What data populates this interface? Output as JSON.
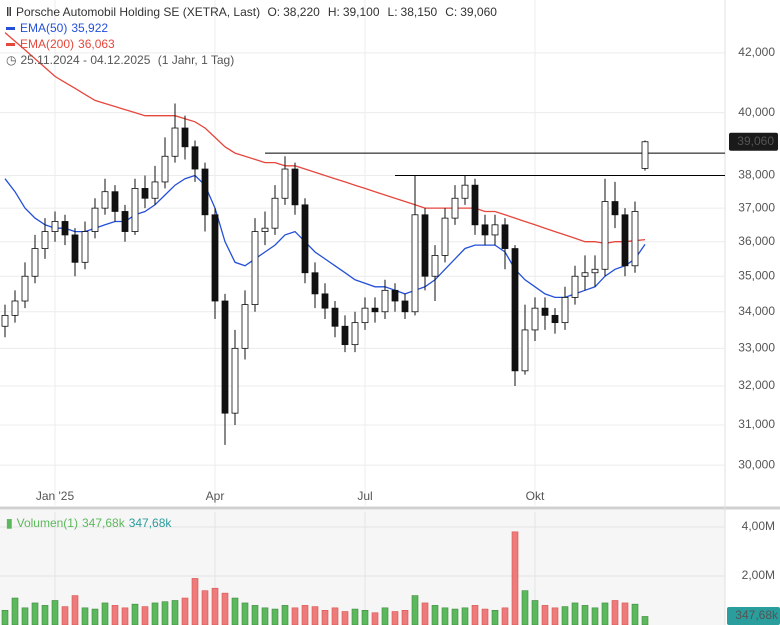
{
  "chart_data": {
    "type": "candlestick",
    "title": "Porsche Automobil Holding SE (XETRA, Last)",
    "quote": [
      {
        "key": "O:",
        "label": "38,220"
      },
      {
        "key": "H:",
        "label": "39,100"
      },
      {
        "key": "L:",
        "label": "38,150"
      },
      {
        "key": "C:",
        "label": "39,060"
      }
    ],
    "period": "25.11.2024 - 04.12.2025",
    "period_note": "(1 Jahr, 1 Tag)",
    "categories": [
      null,
      null,
      null,
      null,
      null,
      "Jan '25",
      null,
      null,
      null,
      null,
      null,
      null,
      null,
      null,
      null,
      null,
      null,
      null,
      null,
      null,
      null,
      "Apr",
      null,
      null,
      null,
      null,
      null,
      null,
      null,
      null,
      null,
      null,
      null,
      null,
      null,
      null,
      "Jul",
      null,
      null,
      null,
      null,
      null,
      null,
      null,
      null,
      null,
      null,
      null,
      null,
      null,
      null,
      null,
      null,
      "Okt",
      null,
      null,
      null,
      null,
      null,
      null,
      null,
      null,
      null,
      null,
      null
    ],
    "open": [
      33.6,
      33.9,
      34.3,
      35.0,
      35.8,
      36.3,
      36.6,
      36.2,
      35.4,
      36.3,
      37.0,
      37.5,
      36.9,
      36.3,
      37.6,
      37.3,
      37.8,
      38.6,
      39.5,
      38.9,
      38.2,
      36.8,
      34.3,
      31.3,
      33.0,
      34.2,
      36.3,
      36.4,
      37.3,
      38.2,
      37.1,
      35.1,
      34.5,
      34.1,
      33.6,
      33.1,
      33.7,
      34.1,
      34.0,
      34.6,
      34.3,
      34.0,
      36.8,
      35.0,
      35.6,
      36.7,
      37.3,
      37.7,
      36.5,
      36.2,
      36.5,
      35.8,
      32.4,
      33.5,
      34.1,
      33.9,
      33.7,
      34.4,
      35.0,
      35.1,
      35.2,
      37.2,
      36.8,
      35.3,
      38.22
    ],
    "high": [
      34.2,
      34.6,
      35.4,
      36.2,
      36.7,
      36.9,
      36.8,
      36.4,
      36.6,
      37.3,
      37.9,
      37.7,
      37.1,
      37.9,
      38.0,
      38.3,
      39.2,
      40.3,
      39.9,
      39.1,
      38.4,
      37.0,
      34.5,
      33.5,
      34.6,
      36.7,
      36.9,
      37.7,
      38.6,
      38.4,
      37.3,
      35.4,
      34.8,
      34.3,
      33.9,
      34.0,
      34.4,
      34.4,
      34.9,
      34.8,
      34.5,
      38.0,
      37.0,
      35.9,
      37.0,
      37.7,
      38.0,
      37.9,
      36.8,
      36.8,
      36.7,
      35.9,
      34.2,
      34.4,
      34.4,
      34.1,
      34.7,
      35.3,
      35.6,
      35.6,
      37.9,
      37.8,
      37.0,
      37.2,
      39.1
    ],
    "low": [
      33.3,
      33.7,
      34.1,
      34.8,
      35.5,
      36.0,
      35.9,
      35.0,
      35.2,
      36.1,
      36.8,
      36.6,
      36.0,
      36.2,
      37.0,
      37.1,
      37.6,
      38.4,
      38.5,
      37.8,
      36.3,
      33.8,
      30.5,
      31.0,
      32.7,
      34.0,
      35.9,
      36.2,
      37.1,
      36.8,
      34.8,
      34.1,
      33.8,
      33.3,
      32.9,
      32.9,
      33.5,
      33.7,
      33.8,
      34.0,
      33.8,
      33.9,
      34.6,
      34.3,
      35.4,
      36.5,
      37.1,
      36.2,
      35.9,
      35.9,
      35.2,
      32.0,
      32.3,
      33.2,
      33.5,
      33.4,
      33.5,
      34.2,
      34.6,
      34.7,
      35.0,
      36.4,
      35.0,
      35.1,
      38.15
    ],
    "close": [
      33.9,
      34.3,
      35.0,
      35.8,
      36.3,
      36.6,
      36.2,
      35.4,
      36.3,
      37.0,
      37.5,
      36.9,
      36.3,
      37.6,
      37.3,
      37.8,
      38.6,
      39.5,
      38.9,
      38.2,
      36.8,
      34.3,
      31.3,
      33.0,
      34.2,
      36.3,
      36.4,
      37.3,
      38.2,
      37.1,
      35.1,
      34.5,
      34.1,
      33.6,
      33.1,
      33.7,
      34.1,
      34.0,
      34.6,
      34.3,
      34.0,
      36.8,
      35.0,
      35.6,
      36.7,
      37.3,
      37.7,
      36.5,
      36.2,
      36.5,
      35.8,
      32.4,
      33.5,
      34.1,
      33.9,
      33.7,
      34.4,
      35.0,
      35.1,
      35.2,
      37.2,
      36.8,
      35.3,
      36.9,
      39.06
    ],
    "candle_color": "#111111",
    "last_price_label": "39,060",
    "ema": [
      {
        "name": "EMA(50)",
        "color": "#2450d8",
        "last_label": "35,922",
        "values": [
          37.9,
          37.5,
          37.0,
          36.7,
          36.5,
          36.4,
          36.4,
          36.3,
          36.3,
          36.4,
          36.5,
          36.6,
          36.6,
          36.8,
          36.9,
          37.1,
          37.4,
          37.7,
          37.9,
          38.0,
          37.7,
          37.0,
          36.0,
          35.4,
          35.3,
          35.5,
          35.7,
          35.9,
          36.2,
          36.3,
          36.0,
          35.7,
          35.5,
          35.3,
          35.1,
          34.9,
          34.8,
          34.7,
          34.7,
          34.6,
          34.5,
          34.6,
          34.7,
          34.9,
          35.2,
          35.5,
          35.8,
          35.9,
          35.9,
          35.9,
          35.7,
          35.2,
          34.9,
          34.7,
          34.5,
          34.4,
          34.4,
          34.5,
          34.6,
          34.7,
          35.0,
          35.2,
          35.3,
          35.5,
          35.922
        ]
      },
      {
        "name": "EMA(200)",
        "color": "#e5473d",
        "last_label": "36,063",
        "values": [
          42.7,
          42.4,
          42.1,
          41.8,
          41.5,
          41.2,
          41.0,
          40.8,
          40.6,
          40.4,
          40.3,
          40.2,
          40.1,
          40.0,
          39.9,
          39.9,
          39.9,
          39.9,
          39.8,
          39.7,
          39.5,
          39.2,
          38.9,
          38.7,
          38.6,
          38.5,
          38.4,
          38.4,
          38.3,
          38.3,
          38.2,
          38.1,
          38.0,
          37.9,
          37.8,
          37.7,
          37.6,
          37.5,
          37.4,
          37.3,
          37.2,
          37.1,
          37.0,
          37.0,
          37.0,
          37.0,
          37.0,
          37.0,
          36.9,
          36.9,
          36.8,
          36.7,
          36.6,
          36.5,
          36.4,
          36.3,
          36.2,
          36.1,
          36.0,
          36.0,
          35.95,
          36.0,
          36.0,
          36.03,
          36.063
        ]
      }
    ],
    "levels": [
      {
        "value": 38.7,
        "start": 26
      },
      {
        "value": 38.0,
        "start": 39
      }
    ],
    "log_scale": true,
    "grid": true,
    "ylim": [
      29.04,
      43.85
    ],
    "yticks": [
      {
        "value": 30,
        "label": "30,000"
      },
      {
        "value": 31,
        "label": "31,000"
      },
      {
        "value": 32,
        "label": "32,000"
      },
      {
        "value": 33,
        "label": "33,000"
      },
      {
        "value": 34,
        "label": "34,000"
      },
      {
        "value": 35,
        "label": "35,000"
      },
      {
        "value": 36,
        "label": "36,000"
      },
      {
        "value": 37,
        "label": "37,000"
      },
      {
        "value": 38,
        "label": "38,000"
      },
      {
        "value": 40,
        "label": "40,000"
      },
      {
        "value": 42,
        "label": "42,000"
      }
    ],
    "volume": {
      "name": "Volumen(1)",
      "last_labels": [
        "347,68k",
        "347,68k"
      ],
      "tag_label": "347,68k",
      "up_color": "#5cb85c",
      "down_color": "#ee7b7b",
      "values": [
        600000,
        1100000,
        700000,
        900000,
        800000,
        1000000,
        750000,
        1200000,
        700000,
        650000,
        900000,
        800000,
        700000,
        850000,
        750000,
        900000,
        950000,
        1000000,
        1100000,
        1900000,
        1400000,
        1500000,
        1300000,
        1100000,
        900000,
        800000,
        700000,
        650000,
        800000,
        700000,
        800000,
        750000,
        600000,
        700000,
        550000,
        650000,
        600000,
        500000,
        700000,
        550000,
        600000,
        1200000,
        900000,
        800000,
        700000,
        650000,
        700000,
        800000,
        650000,
        600000,
        700000,
        3800000,
        1400000,
        1000000,
        800000,
        700000,
        750000,
        900000,
        800000,
        700000,
        900000,
        1000000,
        900000,
        850000,
        347680
      ],
      "ylim": [
        0,
        4610000
      ],
      "yticks": [
        {
          "value": 2000000,
          "label": "2,00M"
        },
        {
          "value": 4000000,
          "label": "4,00M"
        }
      ]
    }
  }
}
